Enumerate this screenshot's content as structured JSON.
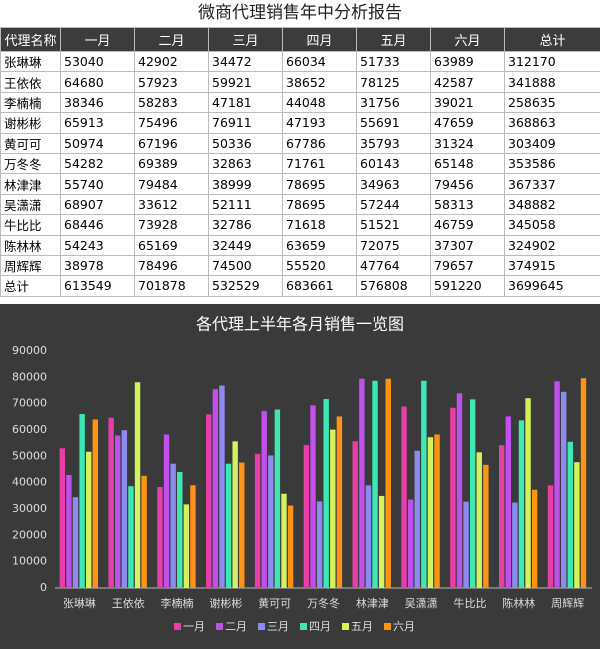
{
  "title": "微商代理销售年中分析报告",
  "table": {
    "header": [
      "代理名称",
      "一月",
      "二月",
      "三月",
      "四月",
      "五月",
      "六月",
      "总计"
    ],
    "rows": [
      [
        "张琳琳",
        53040,
        42902,
        34472,
        66034,
        51733,
        63989,
        312170
      ],
      [
        "王依依",
        64680,
        57923,
        59921,
        38652,
        78125,
        42587,
        341888
      ],
      [
        "李楠楠",
        38346,
        58283,
        47181,
        44048,
        31756,
        39021,
        258635
      ],
      [
        "谢彬彬",
        65913,
        75496,
        76911,
        47193,
        55691,
        47659,
        368863
      ],
      [
        "黄可可",
        50974,
        67196,
        50336,
        67786,
        35793,
        31324,
        303409
      ],
      [
        "万冬冬",
        54282,
        69389,
        32863,
        71761,
        60143,
        65148,
        353586
      ],
      [
        "林津津",
        55740,
        79484,
        38999,
        78695,
        34963,
        79456,
        367337
      ],
      [
        "吴潇潇",
        68907,
        33612,
        52111,
        78695,
        57244,
        58313,
        348882
      ],
      [
        "牛比比",
        68446,
        73928,
        32786,
        71618,
        51521,
        46759,
        345058
      ],
      [
        "陈林林",
        54243,
        65169,
        32449,
        63659,
        72075,
        37307,
        324902
      ],
      [
        "周辉辉",
        38978,
        78496,
        74500,
        55520,
        47764,
        79657,
        374915
      ],
      [
        "总计",
        613549,
        701878,
        532529,
        683661,
        576808,
        591220,
        3699645
      ]
    ]
  },
  "chart_data": {
    "type": "bar",
    "title": "各代理上半年各月销售一览图",
    "categories": [
      "张琳琳",
      "王依依",
      "李楠楠",
      "谢彬彬",
      "黄可可",
      "万冬冬",
      "林津津",
      "吴潇潇",
      "牛比比",
      "陈林林",
      "周辉辉"
    ],
    "series": [
      {
        "name": "一月",
        "color": "#e83ea8",
        "values": [
          53040,
          64680,
          38346,
          65913,
          50974,
          54282,
          55740,
          68907,
          68446,
          54243,
          38978
        ]
      },
      {
        "name": "二月",
        "color": "#c050ec",
        "values": [
          42902,
          57923,
          58283,
          75496,
          67196,
          69389,
          79484,
          33612,
          73928,
          65169,
          78496
        ]
      },
      {
        "name": "三月",
        "color": "#8c8cf0",
        "values": [
          34472,
          59921,
          47181,
          76911,
          50336,
          32863,
          38999,
          52111,
          32786,
          32449,
          74500
        ]
      },
      {
        "name": "四月",
        "color": "#3ee8b4",
        "values": [
          66034,
          38652,
          44048,
          47193,
          67786,
          71761,
          78695,
          78695,
          71618,
          63659,
          55520
        ]
      },
      {
        "name": "五月",
        "color": "#d4f25c",
        "values": [
          51733,
          78125,
          31756,
          55691,
          35793,
          60143,
          34963,
          57244,
          51521,
          72075,
          47764
        ]
      },
      {
        "name": "六月",
        "color": "#ff9414",
        "values": [
          63989,
          42587,
          39021,
          47659,
          31324,
          65148,
          79456,
          58313,
          46759,
          37307,
          79657
        ]
      }
    ],
    "ylim": [
      0,
      90000
    ],
    "yticks": [
      0,
      10000,
      20000,
      30000,
      40000,
      50000,
      60000,
      70000,
      80000,
      90000
    ]
  }
}
